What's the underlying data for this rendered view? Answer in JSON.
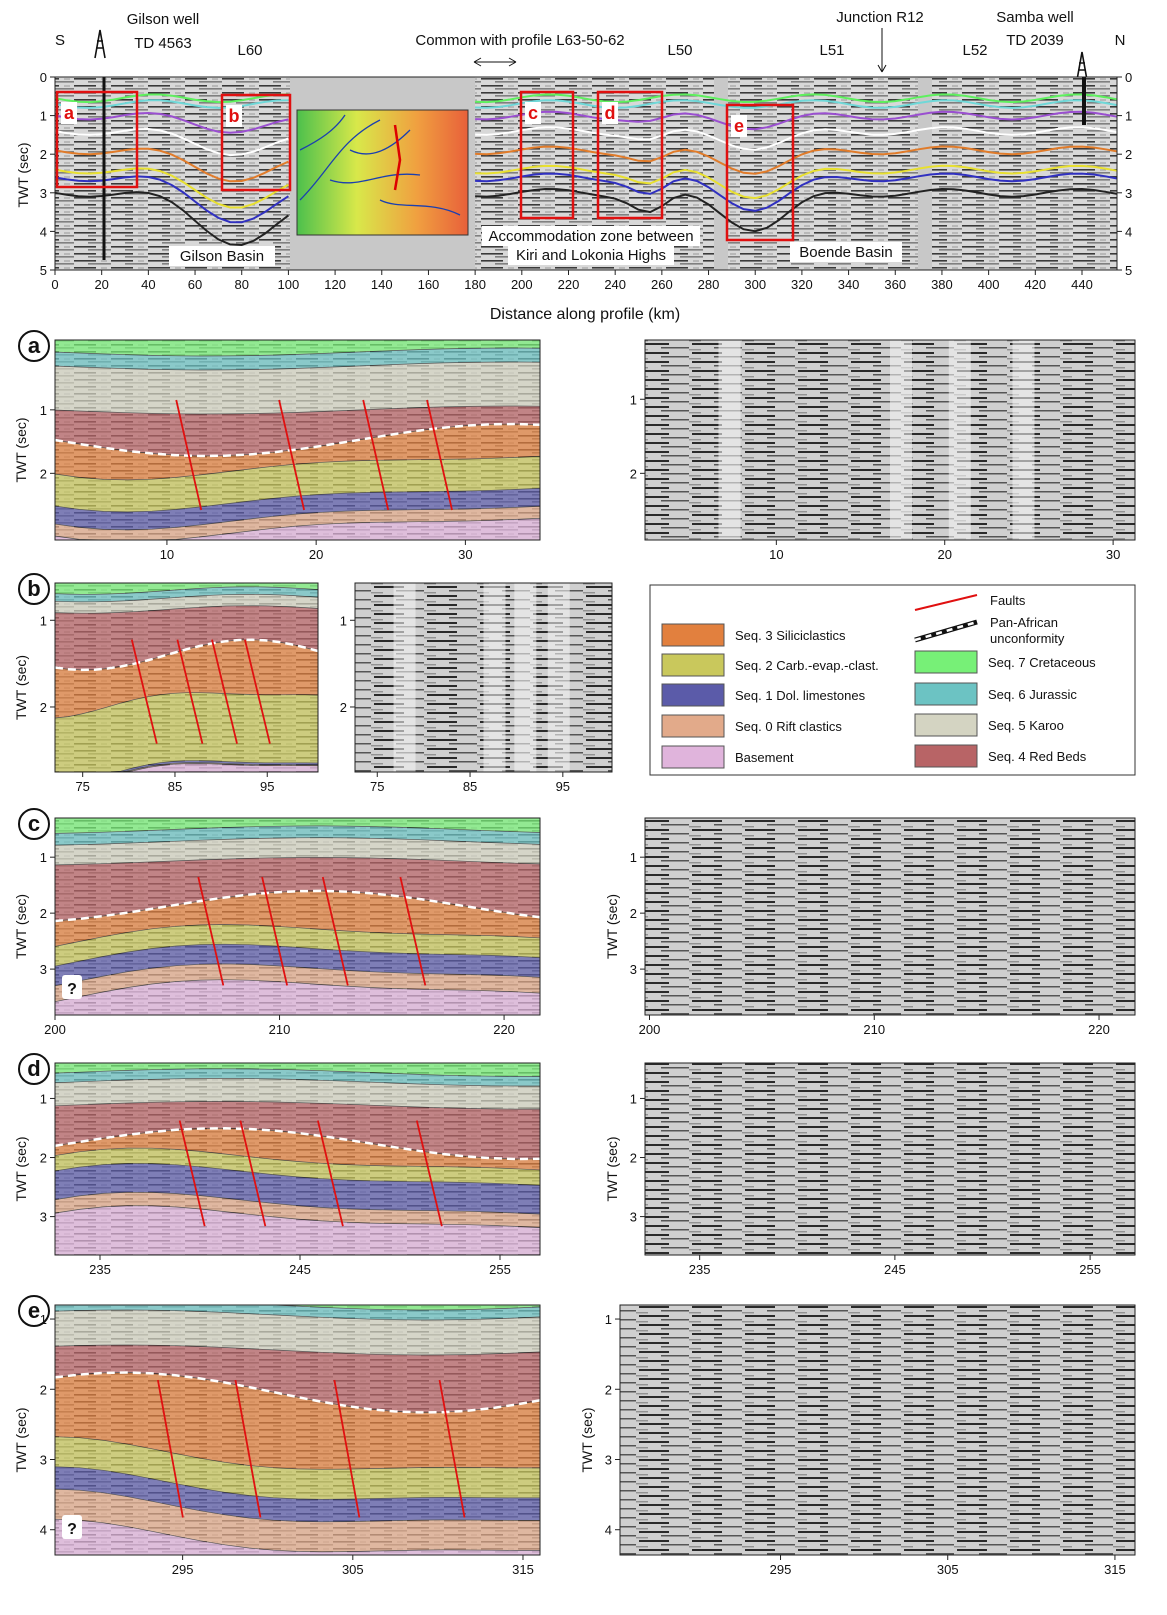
{
  "header": {
    "south": "S",
    "north": "N",
    "gilson_well": "Gilson well",
    "gilson_td": "TD 4563",
    "l60": "L60",
    "common": "Common with profile L63-50-62",
    "l50": "L50",
    "l51": "L51",
    "junction": "Junction R12",
    "l52": "L52",
    "samba_well": "Samba well",
    "samba_td": "TD 2039"
  },
  "overview": {
    "y_label": "TWT (sec)",
    "x_label": "Distance along profile (km)",
    "xlim": [
      0,
      455
    ],
    "ylim": [
      0,
      5
    ],
    "xticks": [
      0,
      20,
      40,
      60,
      80,
      100,
      120,
      140,
      160,
      180,
      200,
      220,
      240,
      260,
      280,
      300,
      320,
      340,
      360,
      380,
      400,
      420,
      440
    ],
    "yticks": [
      0,
      1,
      2,
      3,
      4,
      5
    ],
    "boxes": [
      "a",
      "b",
      "c",
      "d",
      "e"
    ],
    "gilson_basin": "Gilson Basin",
    "accommodation_zone": [
      "Accommodation zone between",
      "Kiri and Lokonia Highs"
    ],
    "boende_basin": "Boende Basin"
  },
  "panels": [
    {
      "letter": "a",
      "y_label": "TWT (sec)",
      "interpreted": {
        "xlim": [
          2.5,
          35
        ],
        "ylim": [
          -0.1,
          3.05
        ],
        "xticks": [
          10,
          20,
          30
        ],
        "yticks": [
          1,
          2
        ]
      },
      "seismic": {
        "xlim": [
          2.2,
          31.3
        ],
        "ylim": [
          0.2,
          2.9
        ],
        "xticks": [
          10,
          20,
          30
        ],
        "yticks": [
          1,
          2
        ]
      }
    },
    {
      "letter": "b",
      "y_label": "TWT (sec)",
      "interpreted": {
        "xlim": [
          72,
          100.5
        ],
        "ylim": [
          0.57,
          2.75
        ],
        "xticks": [
          75,
          85,
          95
        ],
        "yticks": [
          1,
          2
        ]
      },
      "seismic": {
        "xlim": [
          72.6,
          100.3
        ],
        "ylim": [
          0.57,
          2.75
        ],
        "xticks": [
          75,
          85,
          95
        ],
        "yticks": [
          1,
          2
        ]
      }
    },
    {
      "letter": "c",
      "y_label": "TWT (sec)",
      "query": "?",
      "interpreted": {
        "xlim": [
          200,
          221.6
        ],
        "ylim": [
          0.3,
          3.82
        ],
        "xticks": [
          200,
          210,
          220
        ],
        "yticks": [
          1,
          2,
          3
        ]
      },
      "seismic": {
        "y_label": "TWT (sec)",
        "xlim": [
          199.8,
          221.6
        ],
        "ylim": [
          0.3,
          3.82
        ],
        "xticks": [
          200,
          210,
          220
        ],
        "yticks": [
          1,
          2,
          3
        ]
      }
    },
    {
      "letter": "d",
      "y_label": "TWT (sec)",
      "interpreted": {
        "xlim": [
          232.75,
          257
        ],
        "ylim": [
          0.4,
          3.65
        ],
        "xticks": [
          235,
          245,
          255
        ],
        "yticks": [
          1,
          2,
          3
        ]
      },
      "seismic": {
        "y_label": "TWT (sec)",
        "xlim": [
          232.2,
          257.3
        ],
        "ylim": [
          0.4,
          3.65
        ],
        "xticks": [
          235,
          245,
          255
        ],
        "yticks": [
          1,
          2,
          3
        ]
      }
    },
    {
      "letter": "e",
      "y_label": "TWT (sec)",
      "query": "?",
      "interpreted": {
        "xlim": [
          287.5,
          316
        ],
        "ylim": [
          0.8,
          4.36
        ],
        "xticks": [
          295,
          305,
          315
        ],
        "yticks": [
          1,
          2,
          3,
          4
        ]
      },
      "seismic": {
        "y_label": "TWT (sec)",
        "xlim": [
          285.4,
          316.2
        ],
        "ylim": [
          0.8,
          4.36
        ],
        "xticks": [
          295,
          305,
          315
        ],
        "yticks": [
          1,
          2,
          3,
          4
        ]
      }
    }
  ],
  "legend": {
    "faults": "Faults",
    "unconformity": [
      "Pan-African",
      "unconformity"
    ],
    "items": [
      {
        "label": "Seq. 7 Cretaceous",
        "color": "#77f077"
      },
      {
        "label": "Seq. 6 Jurassic",
        "color": "#6cc3c3"
      },
      {
        "label": "Seq. 5 Karoo",
        "color": "#d4d4c2"
      },
      {
        "label": "Seq. 4 Red Beds",
        "color": "#b86466"
      },
      {
        "label": "Seq. 3 Siliciclastics",
        "color": "#e2803e"
      },
      {
        "label": "Seq. 2 Carb.-evap.-clast.",
        "color": "#c9c85c"
      },
      {
        "label": "Seq. 1 Dol. limestones",
        "color": "#5b5ba9"
      },
      {
        "label": "Seq. 0 Rift clastics",
        "color": "#e2aa8a"
      },
      {
        "label": "Basement",
        "color": "#e0b4dc"
      }
    ]
  }
}
